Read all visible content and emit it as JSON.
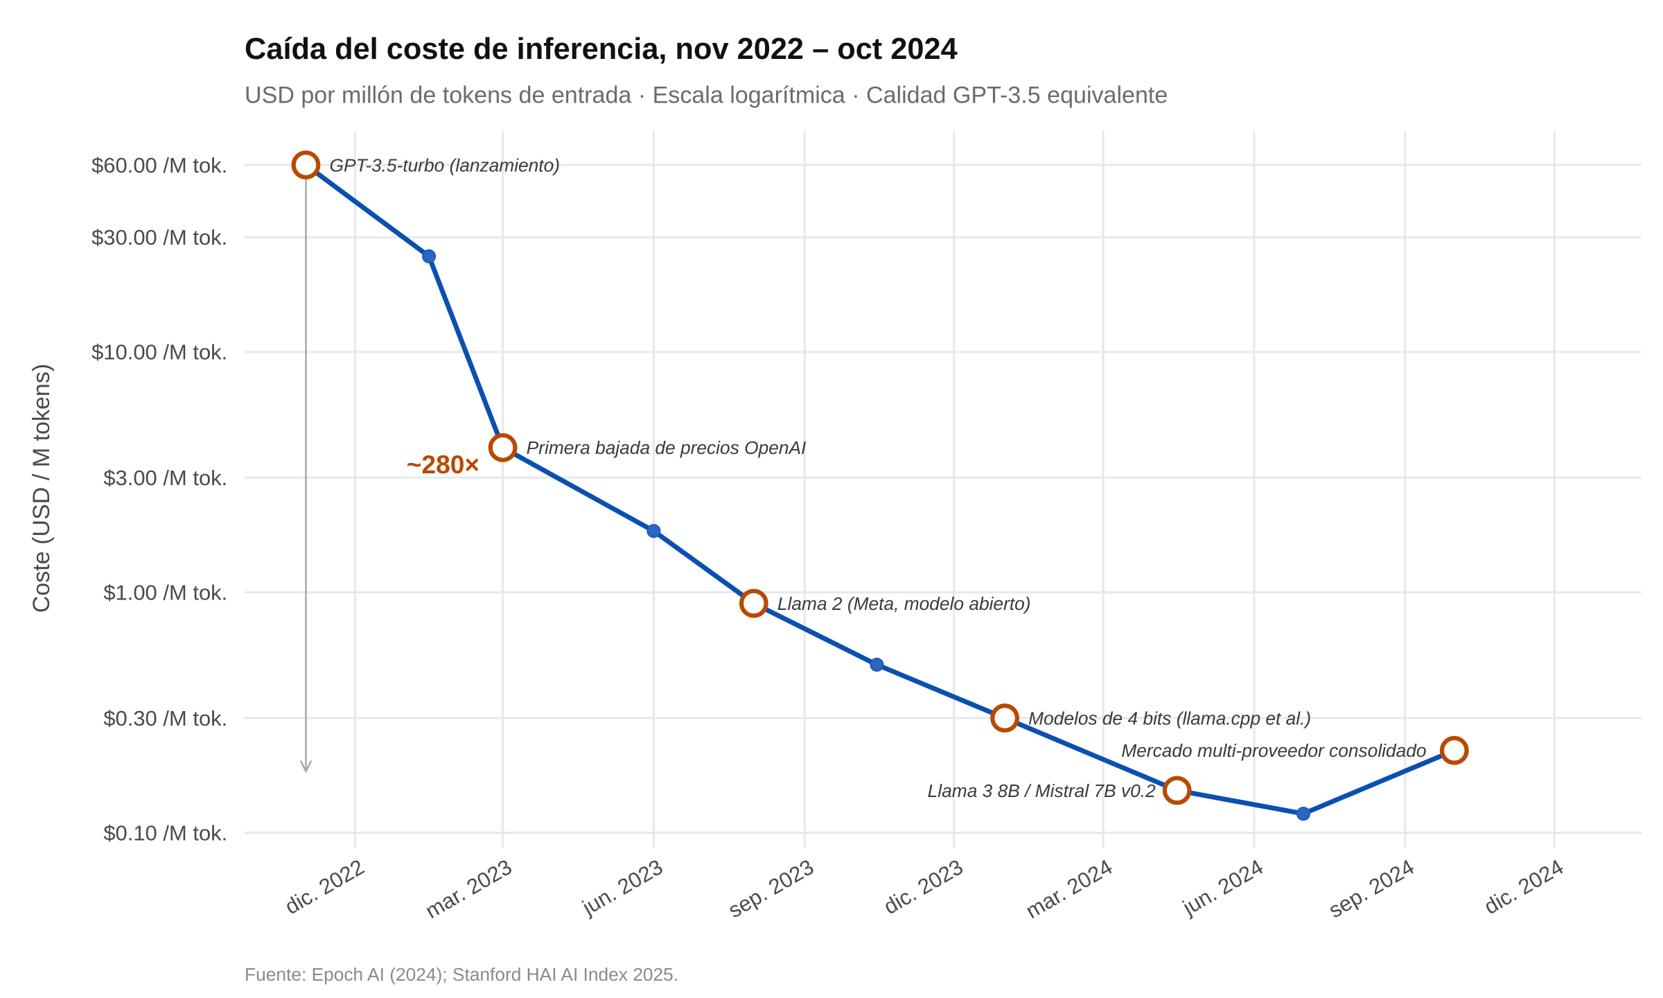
{
  "chart_data": {
    "type": "line",
    "title": "Caída del coste de inferencia, nov 2022 – oct 2024",
    "subtitle": "USD por millón de tokens de entrada · Escala logarítmica · Calidad GPT-3.5 equivalente",
    "xlabel": "",
    "ylabel": "Coste (USD / M tokens)",
    "y_scale": "log",
    "ylim": [
      0.1,
      60
    ],
    "xlim": [
      "2022-10-01",
      "2025-01-15"
    ],
    "grid": true,
    "legend": "none",
    "y_ticks": [
      {
        "value": 60,
        "label": "$60.00 /M tok."
      },
      {
        "value": 30,
        "label": "$30.00 /M tok."
      },
      {
        "value": 10,
        "label": "$10.00 /M tok."
      },
      {
        "value": 3,
        "label": "$3.00 /M tok."
      },
      {
        "value": 1,
        "label": "$1.00 /M tok."
      },
      {
        "value": 0.3,
        "label": "$0.30 /M tok."
      },
      {
        "value": 0.1,
        "label": "$0.10 /M tok."
      }
    ],
    "x_ticks": [
      {
        "value": "2022-12-01",
        "label": "dic. 2022"
      },
      {
        "value": "2023-03-01",
        "label": "mar. 2023"
      },
      {
        "value": "2023-06-01",
        "label": "jun. 2023"
      },
      {
        "value": "2023-09-01",
        "label": "sep. 2023"
      },
      {
        "value": "2023-12-01",
        "label": "dic. 2023"
      },
      {
        "value": "2024-03-01",
        "label": "mar. 2024"
      },
      {
        "value": "2024-06-01",
        "label": "jun. 2024"
      },
      {
        "value": "2024-09-01",
        "label": "sep. 2024"
      },
      {
        "value": "2024-12-01",
        "label": "dic. 2024"
      }
    ],
    "series": [
      {
        "color": "#0a50b0",
        "points": [
          {
            "x": "2022-11-01",
            "y": 60,
            "milestone": true,
            "label": "GPT-3.5-turbo (lanzamiento)",
            "label_side": "right"
          },
          {
            "x": "2023-01-15",
            "y": 25
          },
          {
            "x": "2023-03-01",
            "y": 4.0,
            "milestone": true,
            "label": "Primera bajada de precios OpenAI",
            "label_side": "right"
          },
          {
            "x": "2023-06-01",
            "y": 1.8
          },
          {
            "x": "2023-08-01",
            "y": 0.9,
            "milestone": true,
            "label": "Llama 2 (Meta, modelo abierto)",
            "label_side": "right"
          },
          {
            "x": "2023-10-15",
            "y": 0.5
          },
          {
            "x": "2024-01-01",
            "y": 0.3,
            "milestone": true,
            "label": "Modelos de 4 bits (llama.cpp et al.)",
            "label_side": "right"
          },
          {
            "x": "2024-04-15",
            "y": 0.15,
            "milestone": true,
            "label": "Llama 3 8B / Mistral 7B v0.2",
            "label_side": "left"
          },
          {
            "x": "2024-07-01",
            "y": 0.12
          },
          {
            "x": "2024-10-01",
            "y": 0.22,
            "milestone": true,
            "label": "Mercado multi-proveedor consolidado",
            "label_side": "left"
          }
        ]
      }
    ],
    "milestone_color": "#b84a00",
    "annotations": {
      "reduction_factor": "~280×",
      "arrow_color": "#a8a8a8"
    },
    "caption": "Fuente: Epoch AI (2024); Stanford HAI AI Index 2025."
  }
}
